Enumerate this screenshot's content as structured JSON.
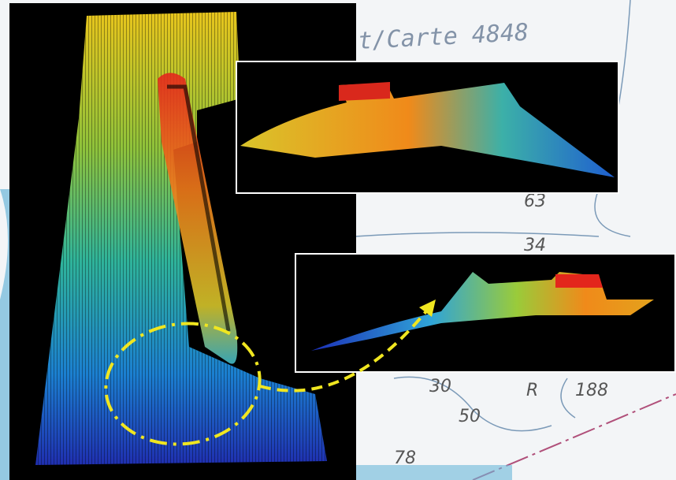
{
  "chart_labels": {
    "title": "t/Carte 4848",
    "depths": [
      "63",
      "34",
      "30",
      "50",
      "R",
      "188",
      "78"
    ]
  }
}
